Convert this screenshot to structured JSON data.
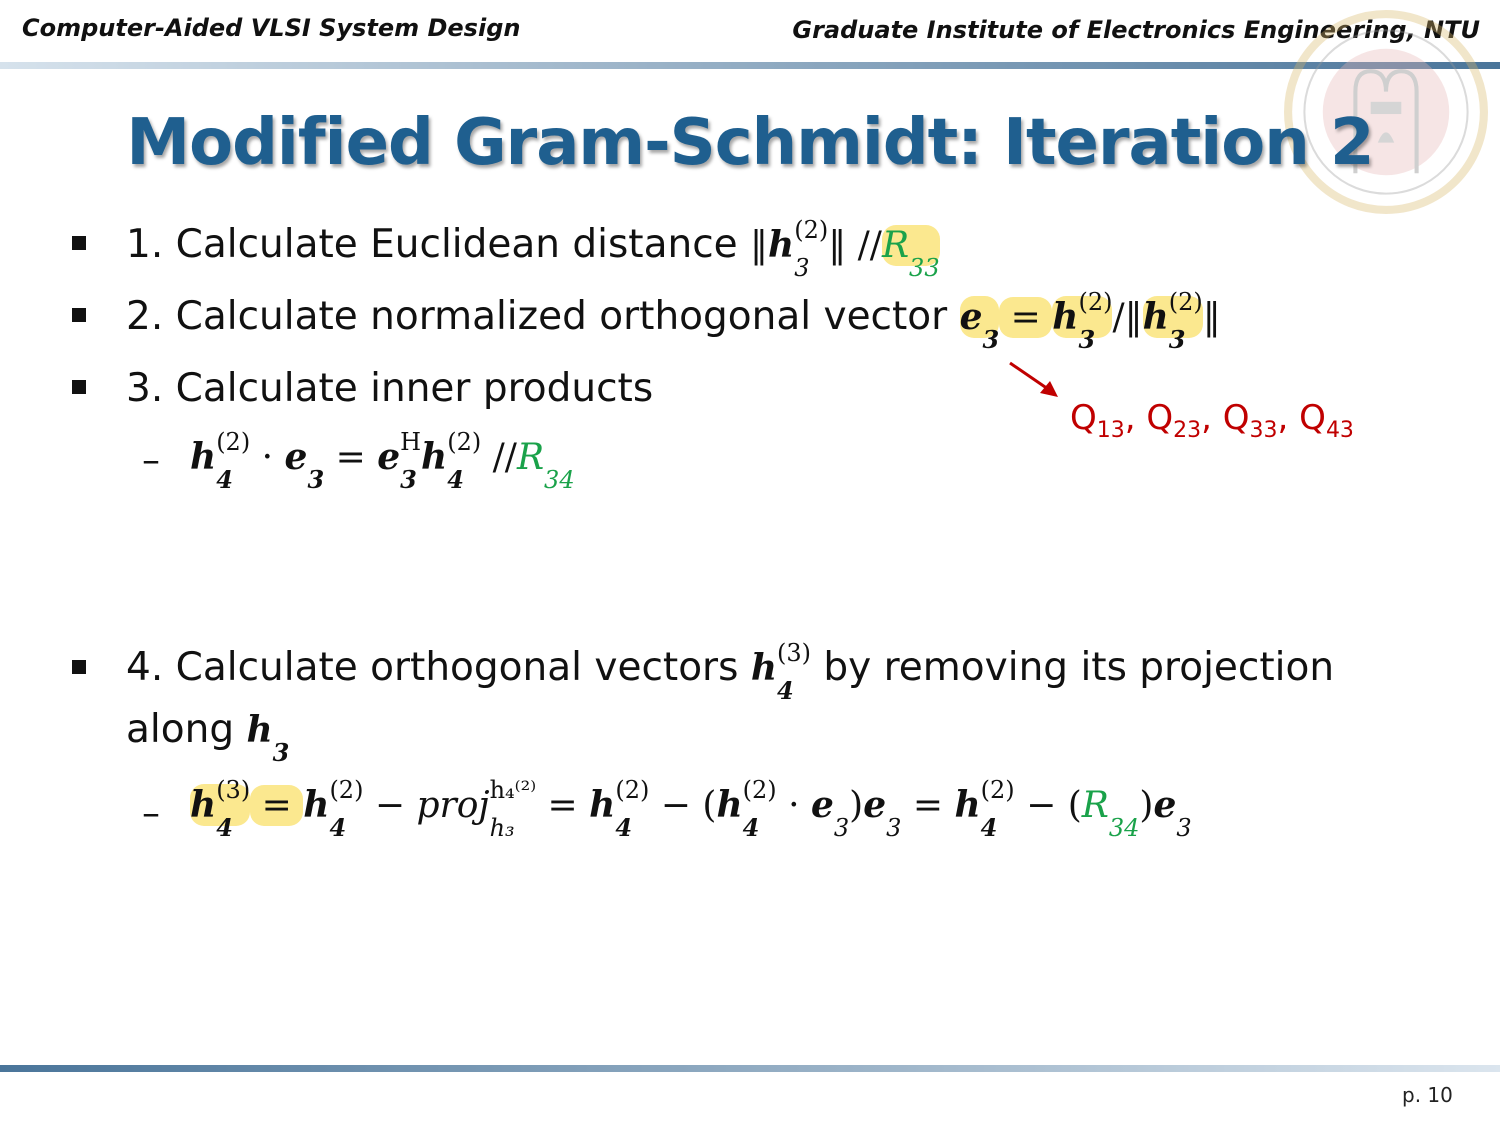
{
  "header": {
    "left": "Computer-Aided VLSI System Design",
    "right": "Graduate Institute of Electronics Engineering, NTU"
  },
  "title": "Modified Gram-Schmidt: Iteration 2",
  "colors": {
    "title": "#1f5f8f",
    "green": "#1aa24a",
    "red": "#c00000",
    "highlight": "#fbe88f"
  },
  "seal_logo": "NTU seal",
  "items": [
    {
      "text": "1. Calculate Euclidean distance ",
      "math": [
        {
          "t": "‖",
          "s": "r"
        },
        {
          "t": "h",
          "s": "bi",
          "sub": "3",
          "subnb": true,
          "sup": "(2)"
        },
        {
          "t": "‖ //",
          "s": "r"
        },
        {
          "t": "R",
          "s": "g",
          "sub": "33",
          "hl": true
        }
      ]
    },
    {
      "text": "2. Calculate normalized orthogonal vector ",
      "math": [
        {
          "t": "e",
          "s": "bi",
          "sub": "3",
          "hl": true
        },
        {
          "t": " = ",
          "s": "r",
          "hl": true
        },
        {
          "t": "h",
          "s": "bi",
          "sub": "3",
          "sup": "(2)",
          "hl": true
        },
        {
          "t": "/‖",
          "s": "r"
        },
        {
          "t": "h",
          "s": "bi",
          "sub": "3",
          "sup": "(2)",
          "hl": true
        },
        {
          "t": "‖",
          "s": "r"
        }
      ]
    },
    {
      "text": "3. Calculate inner products",
      "math": []
    },
    {
      "text": "4. Calculate orthogonal vectors ",
      "math": [
        {
          "t": "h",
          "s": "bi",
          "sub": "4",
          "sup": "(3)"
        }
      ],
      "text2": " by removing its projection",
      "line2": "along ",
      "math2": [
        {
          "t": "h",
          "s": "bi",
          "sub": "3"
        }
      ]
    }
  ],
  "sub3": [
    {
      "t": "h",
      "s": "bi",
      "sub": "4",
      "sup": "(2)"
    },
    {
      "t": " · ",
      "s": "r"
    },
    {
      "t": "e",
      "s": "bi",
      "sub": "3"
    },
    {
      "t": " = ",
      "s": "r"
    },
    {
      "t": "e",
      "s": "bi",
      "sub": "3",
      "sup": "H"
    },
    {
      "t": "h",
      "s": "bi",
      "sub": "4",
      "sup": "(2)"
    },
    {
      "t": " //",
      "s": "r"
    },
    {
      "t": "R",
      "s": "g",
      "sub": "34"
    }
  ],
  "sub4": [
    {
      "t": "h",
      "s": "bi",
      "sub": "4",
      "sup": "(3)",
      "hl": true
    },
    {
      "t": " = ",
      "s": "r",
      "hl": true
    },
    {
      "t": "h",
      "s": "bi",
      "sub": "4",
      "sup": "(2)"
    },
    {
      "t": " − ",
      "s": "r"
    },
    {
      "t": "proj",
      "s": "i",
      "sub": "h₃",
      "sup": "h₄⁽²⁾"
    },
    {
      "t": " = ",
      "s": "r"
    },
    {
      "t": "h",
      "s": "bi",
      "sub": "4",
      "sup": "(2)"
    },
    {
      "t": " − (",
      "s": "r"
    },
    {
      "t": "h",
      "s": "bi",
      "sub": "4",
      "sup": "(2)"
    },
    {
      "t": " · ",
      "s": "r"
    },
    {
      "t": "e",
      "s": "bi",
      "sub": "3",
      "subnb": true
    },
    {
      "t": ")",
      "s": "r"
    },
    {
      "t": "e",
      "s": "bi",
      "sub": "3",
      "subnb": true
    },
    {
      "t": " = ",
      "s": "r"
    },
    {
      "t": "h",
      "s": "bi",
      "sub": "4",
      "sup": "(2)"
    },
    {
      "t": " − (",
      "s": "r"
    },
    {
      "t": "R",
      "s": "g",
      "sub": "34"
    },
    {
      "t": ")",
      "s": "r"
    },
    {
      "t": "e",
      "s": "bi",
      "sub": "3",
      "subnb": true
    }
  ],
  "annotation": {
    "q": [
      {
        "t": "Q",
        "sub": "13"
      },
      {
        "t": "Q",
        "sub": "23"
      },
      {
        "t": "Q",
        "sub": "33"
      },
      {
        "t": "Q",
        "sub": "43"
      }
    ],
    "sep": ", "
  },
  "page": "p. 10"
}
